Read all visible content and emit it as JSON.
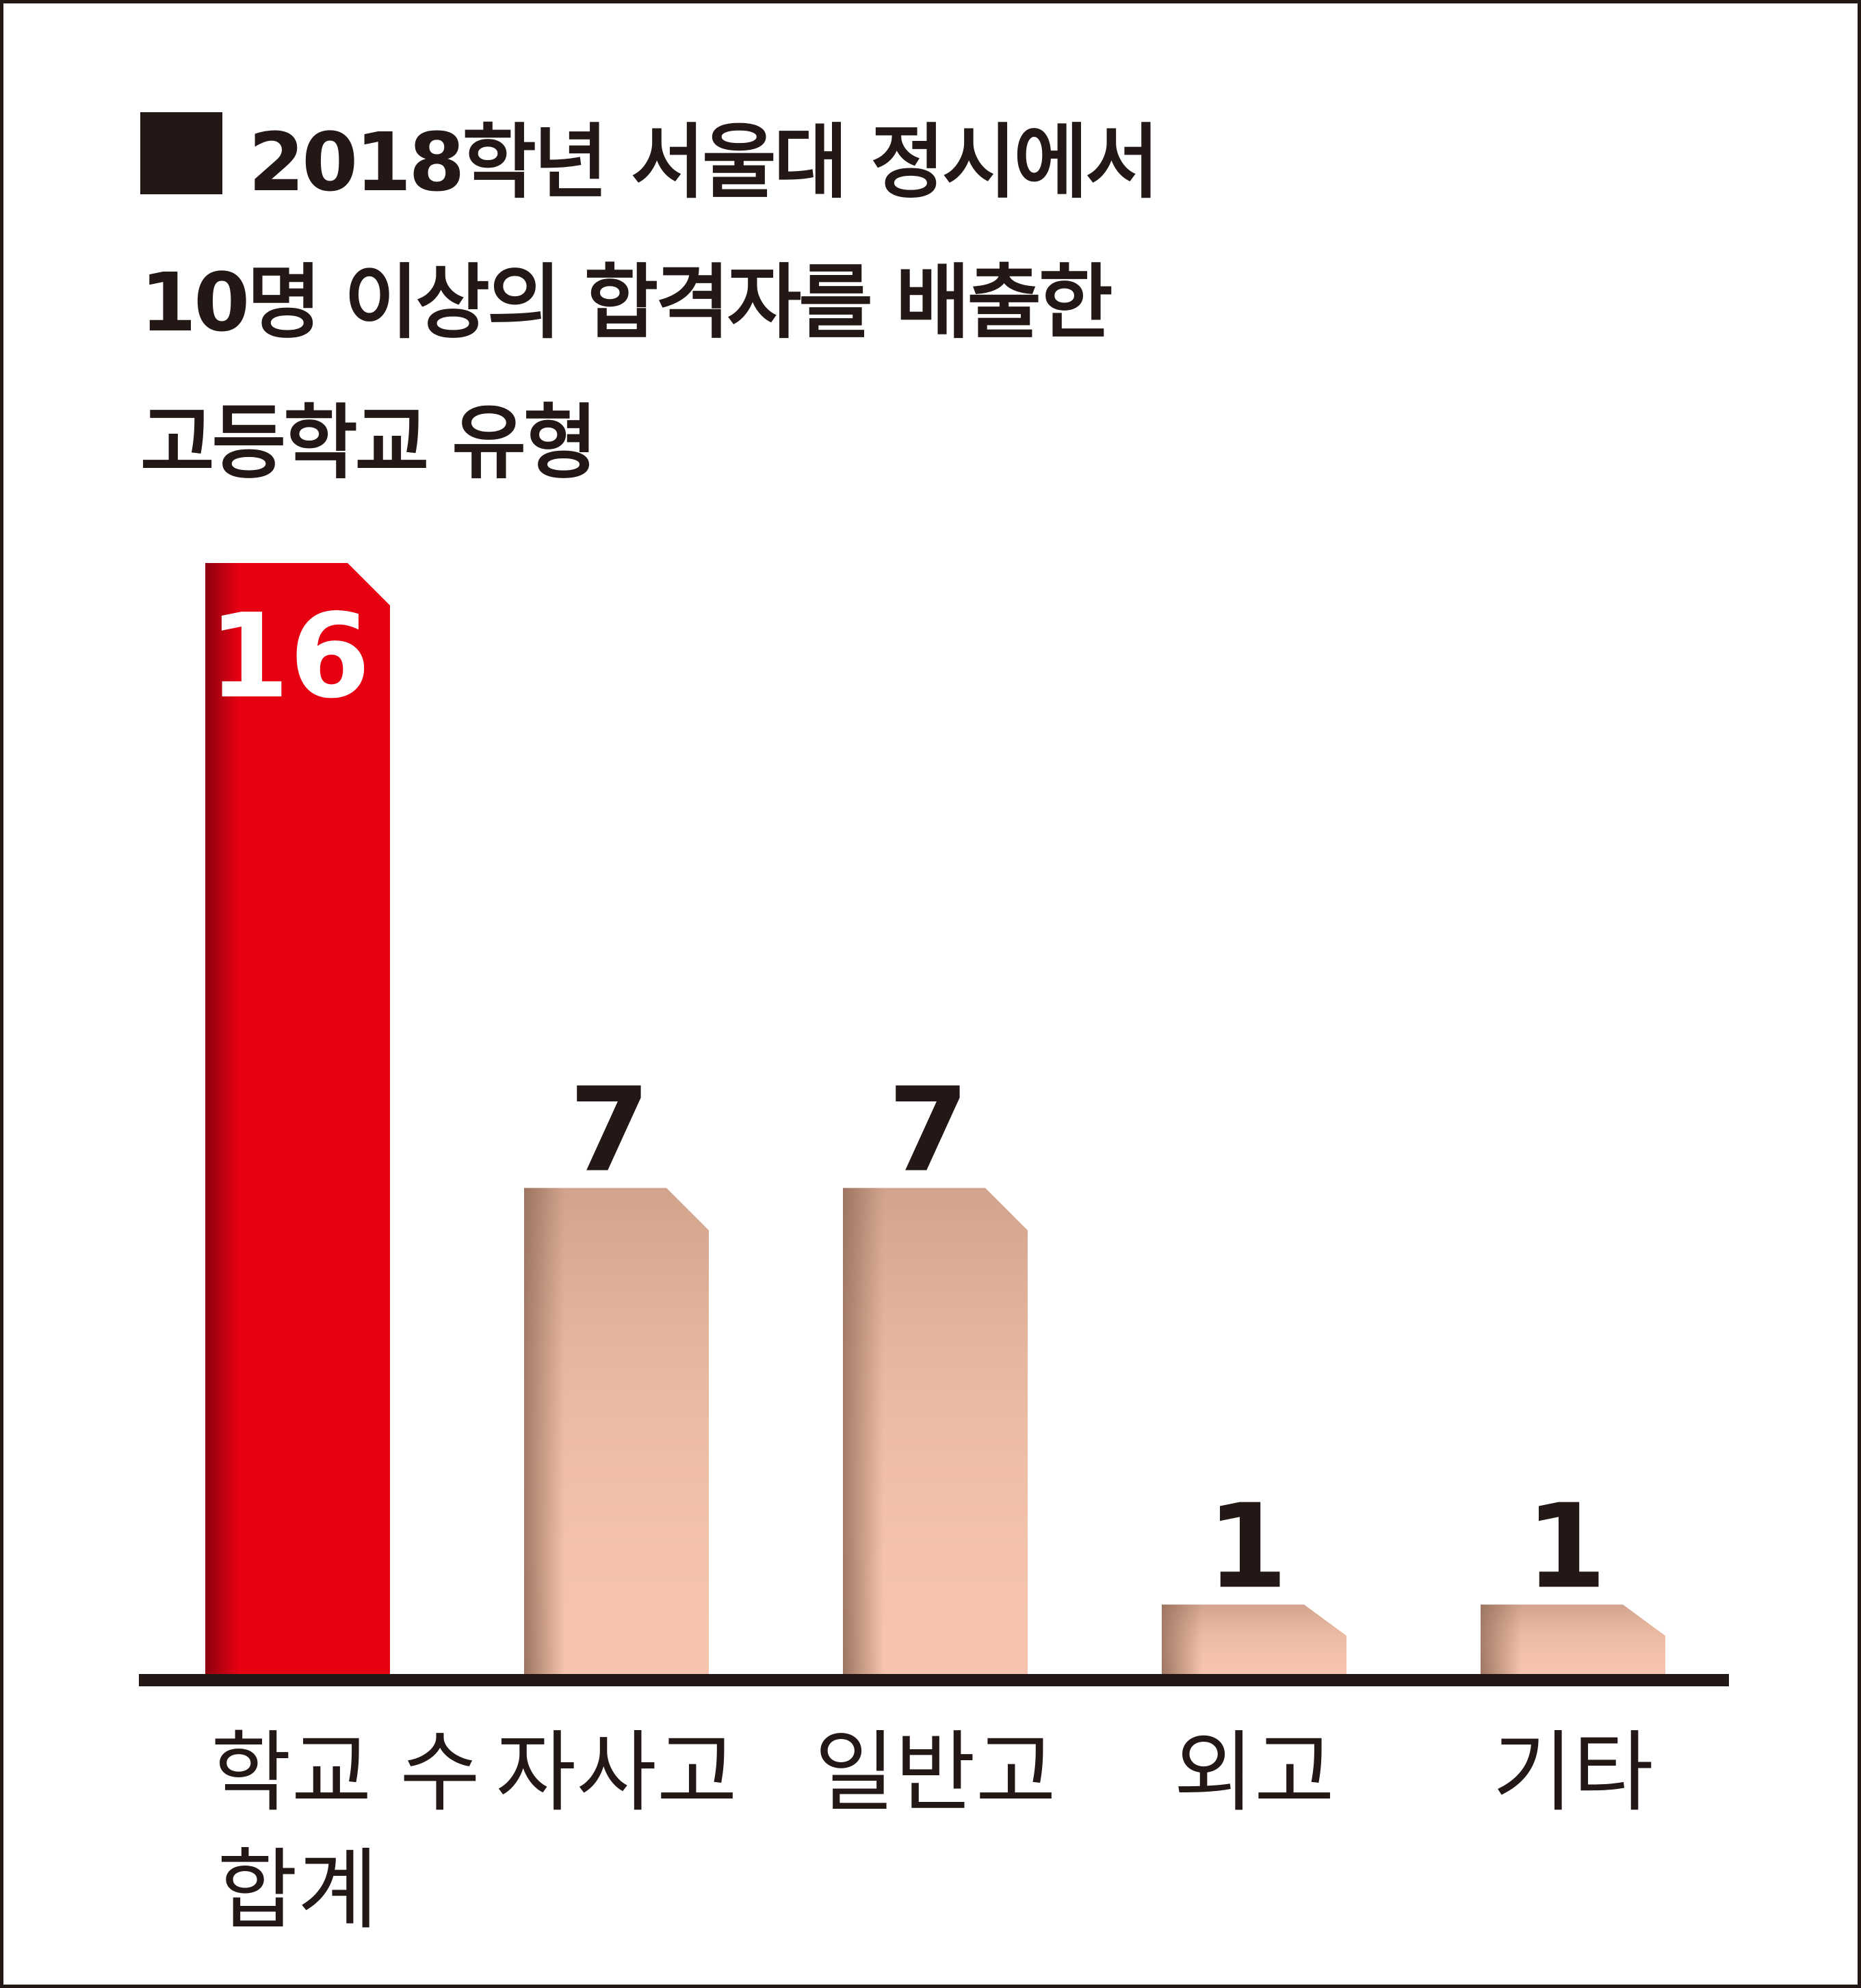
{
  "chart_data": {
    "type": "bar",
    "title_lines": [
      "2018학년 서울대 정시에서",
      "10명 이상의 합격자를 배출한",
      "고등학교 유형"
    ],
    "categories": [
      [
        "학교 수",
        "합계"
      ],
      [
        "자사고"
      ],
      [
        "일반고"
      ],
      [
        "외고"
      ],
      [
        "기타"
      ]
    ],
    "values": [
      16,
      7,
      7,
      1,
      1
    ],
    "value_labels": [
      "16",
      "7",
      "7",
      "1",
      "1"
    ],
    "ylim": [
      0,
      16
    ],
    "grid": false,
    "legend": "none",
    "colors": {
      "highlight": "#e60012",
      "highlight_dark": "#8c0010",
      "bar": "#f6c4ac",
      "bar_shadow": "#9c7460",
      "text": "#231815",
      "highlight_text": "#ffffff"
    }
  }
}
